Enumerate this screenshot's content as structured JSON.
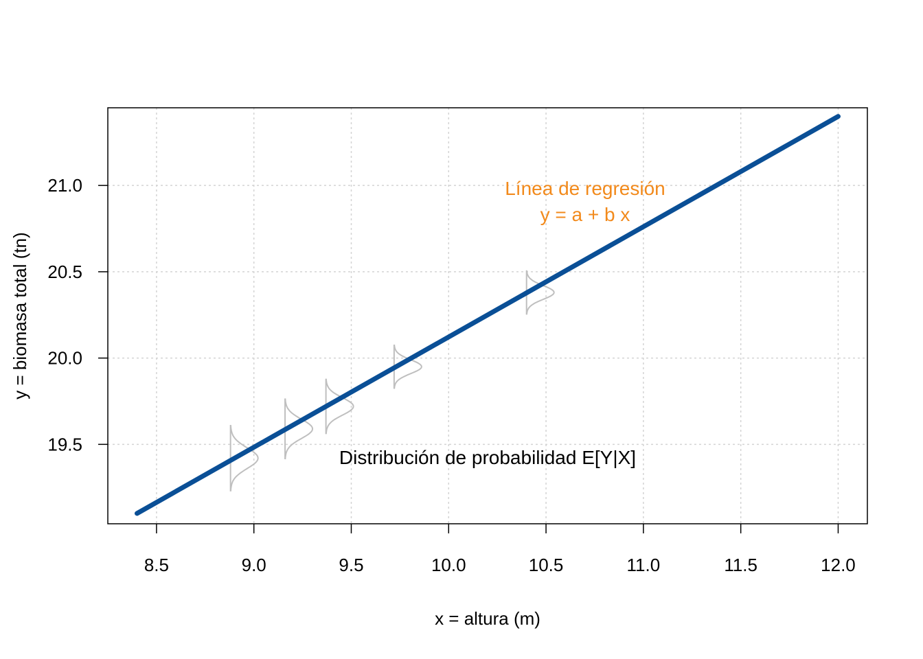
{
  "chart_data": {
    "type": "line",
    "title": "",
    "xlabel": "x = altura (m)",
    "ylabel": "y = biomasa total (tn)",
    "xlim": [
      8.25,
      12.15
    ],
    "ylim": [
      19.04,
      21.45
    ],
    "x_ticks": [
      "8.5",
      "9.0",
      "9.5",
      "10.0",
      "10.5",
      "11.0",
      "11.5",
      "12.0"
    ],
    "y_ticks": [
      "19.5",
      "20.0",
      "20.5",
      "21.0"
    ],
    "grid": true,
    "series": [
      {
        "x": [
          8.4,
          12.0
        ],
        "y": [
          19.1,
          21.4
        ],
        "color": "#0a4f96"
      }
    ],
    "distributions": {
      "color": "#bfbfbf",
      "items": [
        {
          "x": 8.88,
          "mean": 19.42,
          "sd": 0.06
        },
        {
          "x": 9.16,
          "mean": 19.59,
          "sd": 0.055
        },
        {
          "x": 9.37,
          "mean": 19.72,
          "sd": 0.05
        },
        {
          "x": 9.72,
          "mean": 19.95,
          "sd": 0.04
        },
        {
          "x": 10.4,
          "mean": 20.38,
          "sd": 0.04
        }
      ]
    },
    "annotations": {
      "regression_line_1": "Línea de regresión",
      "regression_line_2": "y = a + b x",
      "regression_color": "#f28a1c",
      "distribution": "Distribución de probabilidad E[Y|X]",
      "distribution_color": "#000000"
    }
  }
}
